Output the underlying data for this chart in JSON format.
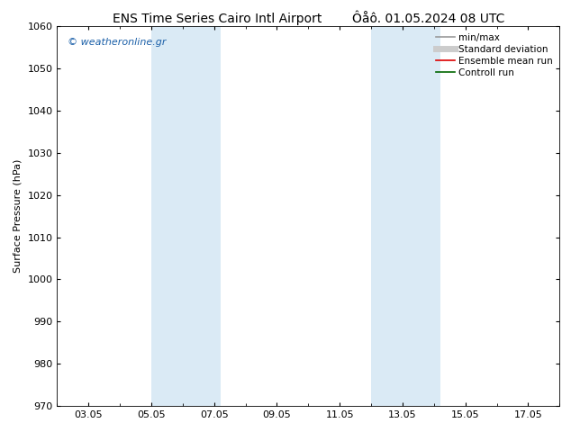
{
  "title_left": "ENS Time Series Cairo Intl Airport",
  "title_right": "Ôåô. 01.05.2024 08 UTC",
  "ylabel": "Surface Pressure (hPa)",
  "ylim": [
    970,
    1060
  ],
  "yticks": [
    970,
    980,
    990,
    1000,
    1010,
    1020,
    1030,
    1040,
    1050,
    1060
  ],
  "xlim_days": [
    0,
    16
  ],
  "xtick_positions": [
    1,
    3,
    5,
    7,
    9,
    11,
    13,
    15
  ],
  "xtick_labels": [
    "03.05",
    "05.05",
    "07.05",
    "09.05",
    "11.05",
    "13.05",
    "15.05",
    "17.05"
  ],
  "shaded_bands": [
    {
      "xmin": 3.0,
      "xmax": 5.2
    },
    {
      "xmin": 10.0,
      "xmax": 12.2
    }
  ],
  "shade_color": "#daeaf5",
  "watermark": "© weatheronline.gr",
  "watermark_color": "#1a5fa8",
  "bg_color": "#ffffff",
  "legend_entries": [
    {
      "label": "min/max",
      "color": "#999999",
      "lw": 1.2
    },
    {
      "label": "Standard deviation",
      "color": "#cccccc",
      "lw": 5
    },
    {
      "label": "Ensemble mean run",
      "color": "#dd0000",
      "lw": 1.2
    },
    {
      "label": "Controll run",
      "color": "#006600",
      "lw": 1.2
    }
  ],
  "title_fontsize": 10,
  "tick_fontsize": 8,
  "ylabel_fontsize": 8,
  "legend_fontsize": 7.5,
  "watermark_fontsize": 8
}
